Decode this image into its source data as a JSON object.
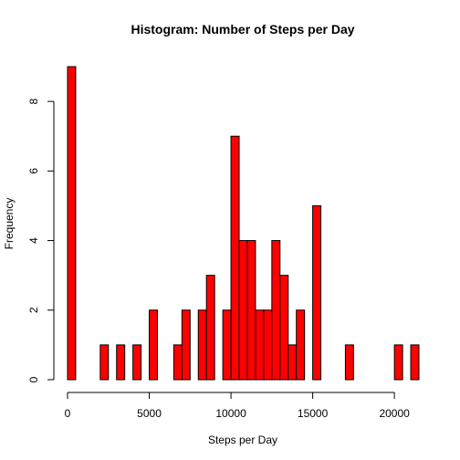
{
  "chart_data": {
    "type": "bar",
    "title": "Histogram: Number of Steps per Day",
    "xlabel": "Steps per Day",
    "ylabel": "Frequency",
    "bin_width": 500,
    "x_start": 0,
    "bin_counts": [
      9,
      0,
      0,
      0,
      1,
      0,
      1,
      0,
      1,
      0,
      2,
      0,
      0,
      1,
      2,
      0,
      2,
      3,
      0,
      2,
      7,
      4,
      4,
      2,
      2,
      4,
      3,
      1,
      2,
      0,
      5,
      0,
      0,
      0,
      1,
      0,
      0,
      0,
      0,
      0,
      1,
      0,
      1
    ],
    "xlim": [
      0,
      21500
    ],
    "ylim": [
      0,
      9
    ],
    "x_ticks": [
      0,
      5000,
      10000,
      15000,
      20000
    ],
    "y_ticks": [
      0,
      2,
      4,
      6,
      8
    ],
    "bar_color": "#FF0000",
    "grid": false
  }
}
